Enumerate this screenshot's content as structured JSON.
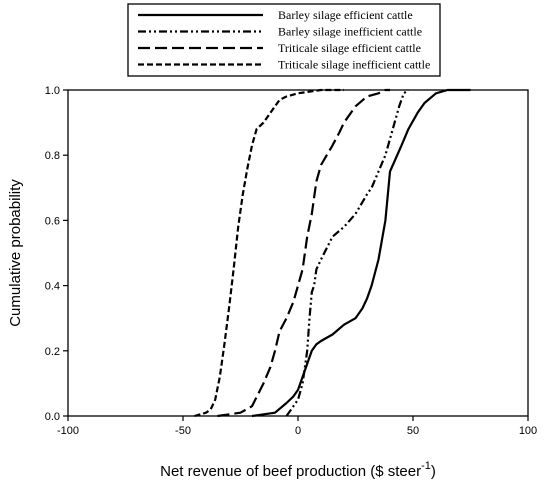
{
  "chart_data": {
    "type": "line",
    "xlabel": "Net revenue of beef production ($ steer",
    "xlabel_sup": "-1",
    "xlabel_end": ")",
    "ylabel": "Cumulative probability",
    "xlim": [
      -100,
      100
    ],
    "ylim": [
      0,
      1
    ],
    "xticks": [
      "-100",
      "-50",
      "0",
      "50",
      "100"
    ],
    "yticks": [
      "0.0",
      "0.2",
      "0.4",
      "0.6",
      "0.8",
      "1.0"
    ],
    "grid": false,
    "legend_position": "top-center",
    "series": [
      {
        "name": "Barley silage efficient cattle",
        "dash": "solid",
        "x": [
          -20,
          -10,
          -5,
          -2,
          0,
          2,
          4,
          6,
          8,
          10,
          15,
          20,
          25,
          28,
          30,
          32,
          35,
          38,
          40,
          45,
          48,
          52,
          55,
          60,
          65,
          70,
          75
        ],
        "y": [
          0,
          0.01,
          0.04,
          0.06,
          0.08,
          0.12,
          0.16,
          0.2,
          0.22,
          0.23,
          0.25,
          0.28,
          0.3,
          0.33,
          0.36,
          0.4,
          0.48,
          0.6,
          0.75,
          0.83,
          0.88,
          0.93,
          0.96,
          0.99,
          1.0,
          1.0,
          1.0
        ]
      },
      {
        "name": "Barley silage inefficient cattle",
        "dash": "dash-dot-dot",
        "x": [
          -5,
          0,
          2,
          4,
          5,
          6,
          7,
          8,
          10,
          15,
          20,
          25,
          30,
          32,
          35,
          38,
          40,
          42,
          44,
          46,
          48
        ],
        "y": [
          0,
          0.05,
          0.1,
          0.2,
          0.3,
          0.38,
          0.4,
          0.45,
          0.48,
          0.55,
          0.58,
          0.62,
          0.68,
          0.7,
          0.75,
          0.8,
          0.85,
          0.9,
          0.95,
          0.99,
          1.0
        ]
      },
      {
        "name": "Triticale silage efficient cattle",
        "dash": "long-dash",
        "x": [
          -35,
          -25,
          -20,
          -15,
          -12,
          -10,
          -8,
          -5,
          -2,
          0,
          2,
          4,
          6,
          8,
          10,
          15,
          18,
          20,
          25,
          30,
          35,
          38,
          40
        ],
        "y": [
          0,
          0.01,
          0.03,
          0.1,
          0.15,
          0.2,
          0.26,
          0.3,
          0.35,
          0.4,
          0.45,
          0.55,
          0.62,
          0.72,
          0.77,
          0.83,
          0.87,
          0.9,
          0.95,
          0.98,
          0.99,
          1.0,
          1.0
        ]
      },
      {
        "name": "Triticale silage inefficient cattle",
        "dash": "short-dash",
        "x": [
          -45,
          -40,
          -38,
          -36,
          -34,
          -32,
          -30,
          -28,
          -26,
          -24,
          -22,
          -20,
          -18,
          -15,
          -12,
          -10,
          -8,
          -5,
          0,
          10,
          20
        ],
        "y": [
          0,
          0.01,
          0.02,
          0.05,
          0.12,
          0.22,
          0.33,
          0.45,
          0.58,
          0.68,
          0.76,
          0.83,
          0.88,
          0.9,
          0.93,
          0.95,
          0.97,
          0.98,
          0.99,
          1.0,
          1.0
        ]
      }
    ]
  }
}
